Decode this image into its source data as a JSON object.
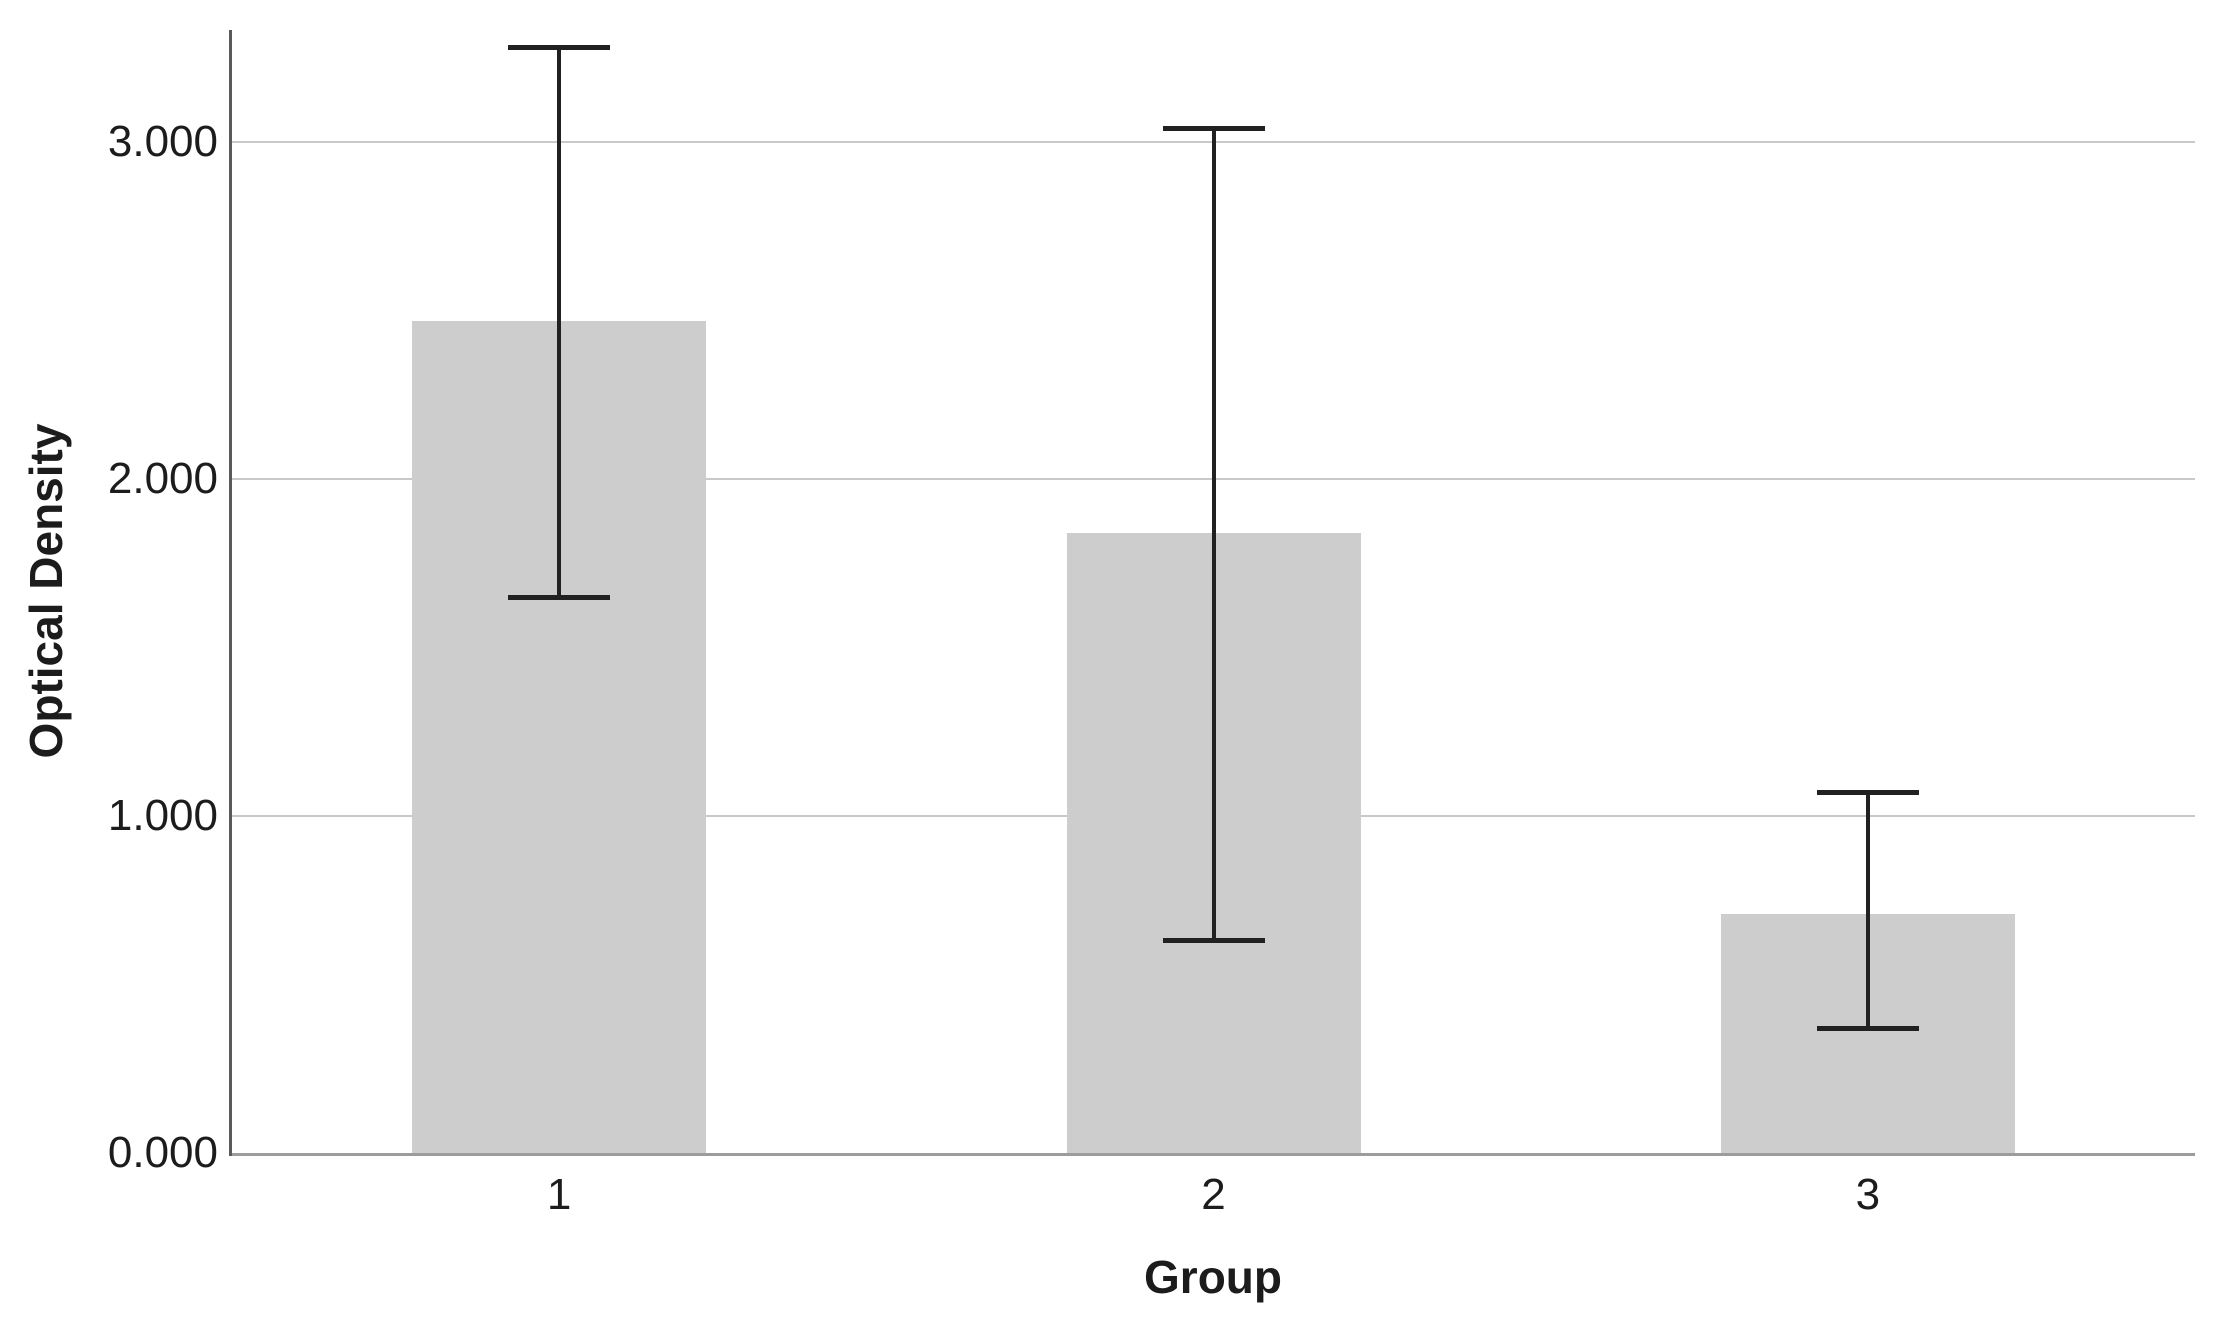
{
  "chart_data": {
    "type": "bar",
    "xlabel": "Group",
    "ylabel": "Optical Density",
    "categories": [
      "1",
      "2",
      "3"
    ],
    "values": [
      2.47,
      1.84,
      0.71
    ],
    "error_bars": {
      "upper": [
        3.28,
        3.04,
        1.07
      ],
      "lower": [
        1.65,
        0.63,
        0.37
      ]
    },
    "yticks": {
      "values": [
        0,
        1,
        2,
        3
      ],
      "labels": [
        "0.000",
        "1.000",
        "2.000",
        "3.000"
      ]
    },
    "ylim": [
      0,
      3.333
    ],
    "grid": true,
    "legend": "none",
    "colors": {
      "background": "#ffffff",
      "bar_fill": "#cdcdcd",
      "error_bar": "#212121",
      "gridline": "#c9c9c9",
      "y_axis_line": "#5a5a5a",
      "x_axis_line": "#9c9c9c",
      "text": "#1c1c1c"
    }
  }
}
